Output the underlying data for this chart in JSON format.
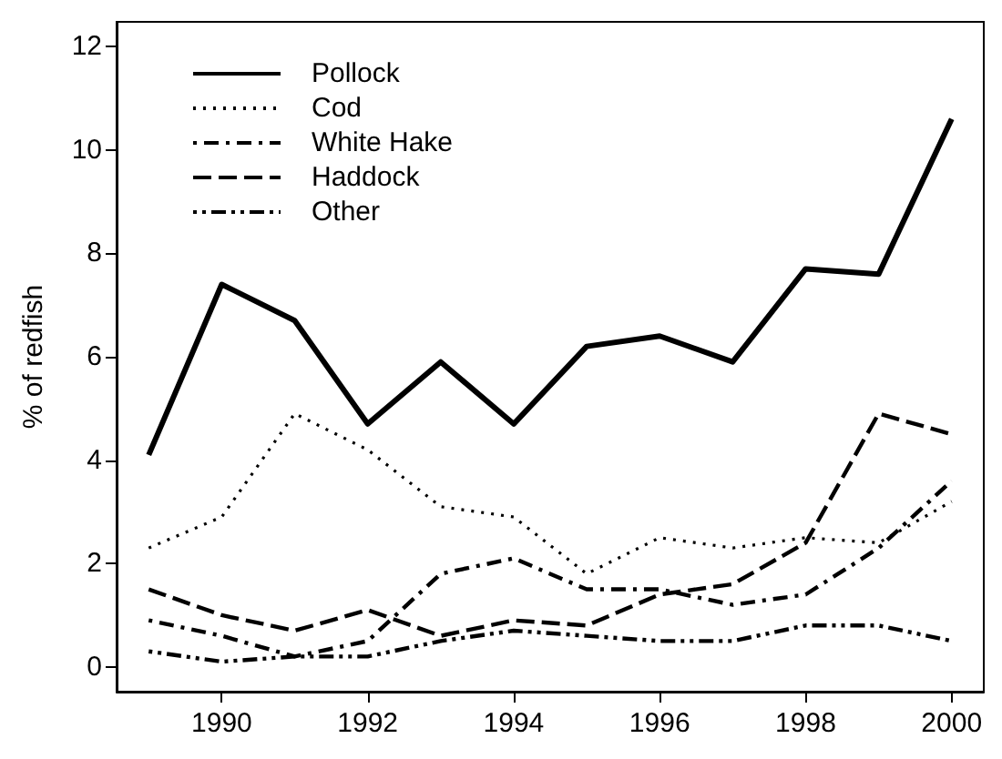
{
  "chart_data": {
    "type": "line",
    "ylabel": "% of redfish",
    "x": [
      1989,
      1990,
      1991,
      1992,
      1993,
      1994,
      1995,
      1996,
      1997,
      1998,
      1999,
      2000
    ],
    "series": [
      {
        "name": "Pollock",
        "color": "#000000",
        "line_style": "solid",
        "values": [
          4.1,
          7.4,
          6.7,
          4.7,
          5.9,
          4.7,
          6.2,
          6.4,
          5.9,
          7.7,
          7.6,
          10.6
        ]
      },
      {
        "name": "Cod",
        "color": "#000000",
        "line_style": "dotted",
        "values": [
          2.3,
          2.9,
          4.9,
          4.2,
          3.1,
          2.9,
          1.8,
          2.5,
          2.3,
          2.5,
          2.4,
          3.2
        ]
      },
      {
        "name": "White Hake",
        "color": "#000000",
        "line_style": "dashdot",
        "values": [
          0.9,
          0.6,
          0.2,
          0.5,
          1.8,
          2.1,
          1.5,
          1.5,
          1.2,
          1.4,
          2.3,
          3.6
        ]
      },
      {
        "name": "Haddock",
        "color": "#000000",
        "line_style": "dashed",
        "values": [
          1.5,
          1.0,
          0.7,
          1.1,
          0.6,
          0.9,
          0.8,
          1.4,
          1.6,
          2.4,
          4.9,
          4.5
        ]
      },
      {
        "name": "Other",
        "color": "#000000",
        "line_style": "dashdotdot",
        "values": [
          0.3,
          0.1,
          0.2,
          0.2,
          0.5,
          0.7,
          0.6,
          0.5,
          0.5,
          0.8,
          0.8,
          0.5
        ]
      }
    ],
    "xlim": [
      1988.56,
      2000.44
    ],
    "xticks": [
      1990,
      1992,
      1994,
      1996,
      1998,
      2000
    ],
    "ylim": [
      -0.48,
      12.48
    ],
    "yticks": [
      0,
      2,
      4,
      6,
      8,
      10,
      12
    ],
    "grid": false,
    "legend": "top left",
    "marker": "none"
  }
}
